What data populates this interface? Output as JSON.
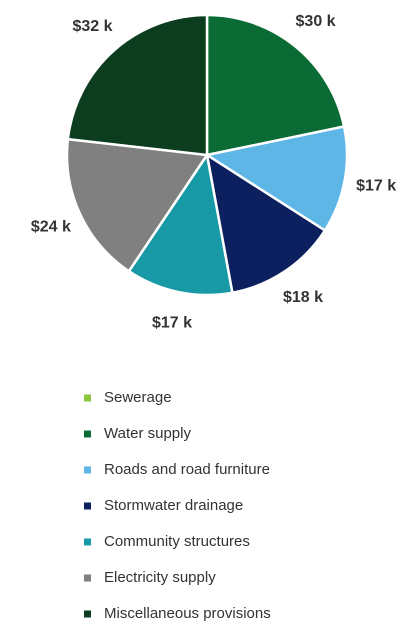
{
  "chart_data": {
    "type": "pie",
    "categories": [
      "Sewerage",
      "Water supply",
      "Roads and road furniture",
      "Stormwater drainage",
      "Community structures",
      "Electricity supply",
      "Miscellaneous provisions"
    ],
    "values": [
      0,
      30,
      17,
      18,
      17,
      24,
      32
    ],
    "value_labels": [
      null,
      "$30 k",
      "$17 k",
      "$18 k",
      "$17 k",
      "$24 k",
      "$32 k"
    ],
    "colors": [
      "#8cc63f",
      "#0b6b35",
      "#5db6e6",
      "#0c1f5e",
      "#1799a6",
      "#808080",
      "#0b3d1e"
    ],
    "legend": "bottom"
  }
}
